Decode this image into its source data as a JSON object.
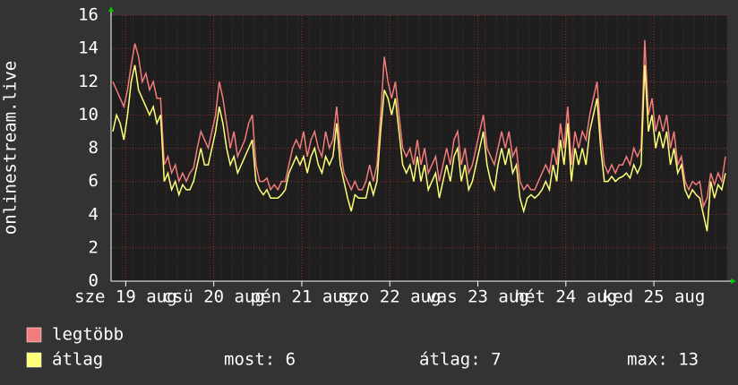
{
  "chart_data": {
    "type": "line",
    "ylabel": "onlinestream.live",
    "ylim": [
      0,
      16
    ],
    "yticks": [
      0,
      2,
      4,
      6,
      8,
      10,
      12,
      14,
      16
    ],
    "xlim": [
      0,
      168
    ],
    "xticks": [
      {
        "value": 4,
        "label": "sze 19 aug"
      },
      {
        "value": 28,
        "label": "csü 20 aug"
      },
      {
        "value": 52,
        "label": "pén 21 aug"
      },
      {
        "value": 76,
        "label": "szo 22 aug"
      },
      {
        "value": 100,
        "label": "vas 23 aug"
      },
      {
        "value": 124,
        "label": "hét 24 aug"
      },
      {
        "value": 148,
        "label": "ked 25 aug"
      }
    ],
    "grid": true,
    "series": [
      {
        "name": "legtöbb",
        "color": "#f27c7c",
        "values": [
          12,
          11.5,
          11,
          10.5,
          11.5,
          13,
          14.3,
          13.5,
          12,
          12.5,
          11.5,
          12,
          11,
          11,
          7,
          7.5,
          6.5,
          7,
          6,
          6.5,
          6,
          6.5,
          6.8,
          8,
          9,
          8.5,
          8,
          9,
          10,
          12,
          11,
          9.5,
          8,
          9,
          7.5,
          8,
          8.5,
          9.5,
          10,
          7,
          6,
          6,
          6.2,
          5.5,
          5.8,
          5.5,
          6,
          6,
          7,
          8,
          8.5,
          8,
          9,
          7.5,
          8.5,
          9,
          8,
          7.5,
          9,
          8,
          8.5,
          10.5,
          8,
          6.5,
          6,
          5.5,
          6,
          5.5,
          5.5,
          6,
          7,
          6,
          7,
          10,
          13.5,
          12,
          11,
          12,
          10,
          8,
          7.5,
          8,
          7,
          8.5,
          7,
          8,
          6.5,
          7,
          7.5,
          6,
          7,
          8,
          7,
          8.5,
          9,
          7,
          8,
          6.5,
          7,
          8,
          9,
          10,
          8,
          7.5,
          7,
          8,
          9,
          8,
          9,
          7.5,
          8,
          6,
          5.5,
          5.8,
          5.5,
          5.5,
          6,
          6.5,
          7,
          6.5,
          8,
          7,
          9.5,
          8,
          10.5,
          7,
          9,
          8,
          9,
          8.5,
          10,
          11,
          12,
          9,
          7,
          6.5,
          7,
          6.5,
          7,
          7,
          7.5,
          7,
          8,
          7.5,
          8,
          14.5,
          10,
          11,
          9,
          10,
          9,
          10,
          8,
          9,
          7,
          7.5,
          6,
          5.5,
          6,
          5.8,
          6,
          4.5,
          5,
          6.5,
          5.8,
          6.5,
          6,
          7.5
        ]
      },
      {
        "name": "átlag",
        "color": "#ffff78",
        "values": [
          9,
          10,
          9.5,
          8.5,
          10,
          12,
          13,
          11.5,
          11,
          10.5,
          10,
          10.5,
          9.5,
          10,
          6,
          6.5,
          5.5,
          6,
          5.2,
          5.8,
          5.5,
          5.5,
          6,
          7,
          8,
          7,
          7,
          8,
          9,
          10.5,
          9.5,
          8,
          7,
          7.5,
          6.5,
          7,
          7.5,
          8,
          8.5,
          6,
          5.5,
          5.2,
          5.5,
          5,
          5,
          5,
          5.2,
          5.5,
          6.5,
          7,
          7.5,
          7,
          7.5,
          6.5,
          7.5,
          8,
          7,
          6.5,
          7.5,
          7,
          7.5,
          9.5,
          7,
          6,
          5,
          4.2,
          5.2,
          5,
          5,
          5,
          6,
          5.2,
          6,
          9,
          11.5,
          11,
          10,
          11,
          9,
          7,
          6.5,
          7,
          6,
          7.5,
          6,
          7,
          5.5,
          6,
          6.5,
          5,
          6,
          7,
          6,
          7.5,
          8,
          6,
          7,
          5.5,
          6,
          7,
          8,
          9,
          7,
          6,
          5.5,
          7,
          8,
          7,
          8,
          6.5,
          7,
          5,
          4.2,
          5,
          5.2,
          5,
          5.2,
          5.5,
          6,
          5.5,
          7,
          6,
          8.5,
          7,
          9.5,
          6,
          8,
          7,
          8,
          7,
          9,
          10,
          11,
          8,
          6,
          6,
          6.3,
          6,
          6.2,
          6.3,
          6.5,
          6.2,
          7,
          6.5,
          7,
          13,
          9,
          10,
          8,
          9,
          8,
          9,
          7,
          8,
          6.5,
          7,
          5.5,
          5,
          5.5,
          5.2,
          5,
          4,
          3,
          6,
          5,
          5.8,
          5.5,
          6.5
        ]
      }
    ],
    "footer": {
      "now": "most: 6",
      "avg": "átlag: 7",
      "max": "max: 13"
    }
  }
}
